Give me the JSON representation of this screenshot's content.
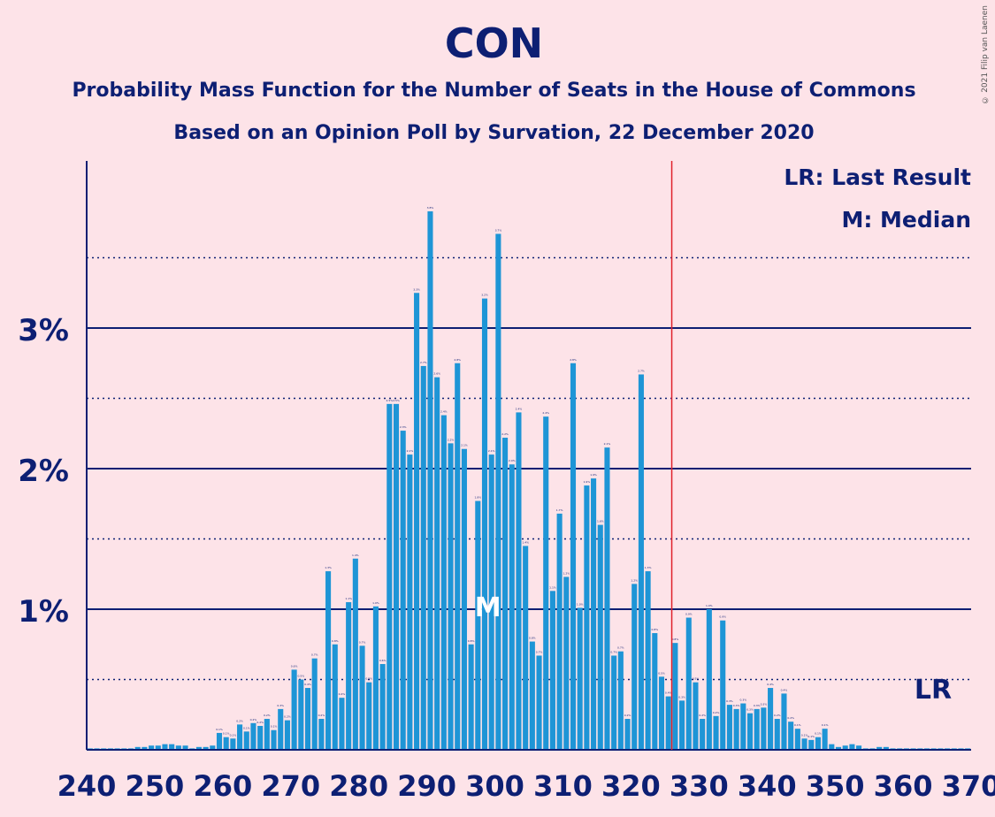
{
  "chart_data": {
    "type": "bar",
    "title": "CON",
    "subtitle": "Probability Mass Function for the Number of Seats in the House of Commons",
    "subtitle2": "Based on an Opinion Poll by Survation, 22 December 2020",
    "copyright": "© 2021 Filip van Laenen",
    "legend": [
      "LR: Last Result",
      "M: Median"
    ],
    "legend_placement": "top-right",
    "lr_label": "LR",
    "median_label": "M",
    "last_result": 326,
    "median": 299,
    "x_start": 240,
    "x_ticks": [
      "240",
      "250",
      "260",
      "270",
      "280",
      "290",
      "300",
      "310",
      "320",
      "330",
      "340",
      "350",
      "360",
      "370"
    ],
    "y_ticks": [
      "1%",
      "2%",
      "3%"
    ],
    "ylim": [
      0,
      4.0
    ],
    "color": "#1e95d6",
    "values": [
      0.01,
      0.01,
      0.01,
      0.01,
      0.01,
      0.01,
      0.01,
      0.02,
      0.02,
      0.03,
      0.03,
      0.04,
      0.04,
      0.03,
      0.03,
      0.01,
      0.02,
      0.02,
      0.03,
      0.12,
      0.09,
      0.08,
      0.18,
      0.13,
      0.19,
      0.17,
      0.22,
      0.14,
      0.29,
      0.21,
      0.57,
      0.5,
      0.44,
      0.65,
      0.22,
      1.27,
      0.75,
      0.37,
      1.05,
      1.36,
      0.74,
      0.48,
      1.02,
      0.61,
      2.46,
      2.46,
      2.27,
      2.1,
      3.25,
      2.73,
      3.83,
      2.65,
      2.38,
      2.18,
      2.75,
      2.14,
      0.75,
      1.77,
      3.21,
      2.1,
      3.67,
      2.22,
      2.03,
      2.4,
      1.45,
      0.77,
      0.67,
      2.37,
      1.13,
      1.68,
      1.23,
      2.75,
      1.01,
      1.88,
      1.93,
      1.6,
      2.15,
      0.67,
      0.7,
      0.22,
      1.18,
      2.67,
      1.27,
      0.83,
      0.52,
      0.38,
      0.76,
      0.35,
      0.94,
      0.48,
      0.22,
      1.0,
      0.24,
      0.92,
      0.32,
      0.29,
      0.33,
      0.26,
      0.29,
      0.3,
      0.44,
      0.22,
      0.4,
      0.2,
      0.15,
      0.08,
      0.07,
      0.09,
      0.15,
      0.04,
      0.02,
      0.03,
      0.04,
      0.03,
      0.01,
      0.01,
      0.02,
      0.02,
      0.01,
      0.01,
      0.01,
      0.01,
      0.01,
      0.01,
      0.01,
      0.01,
      0.01,
      0.01,
      0.01,
      0.01
    ]
  }
}
